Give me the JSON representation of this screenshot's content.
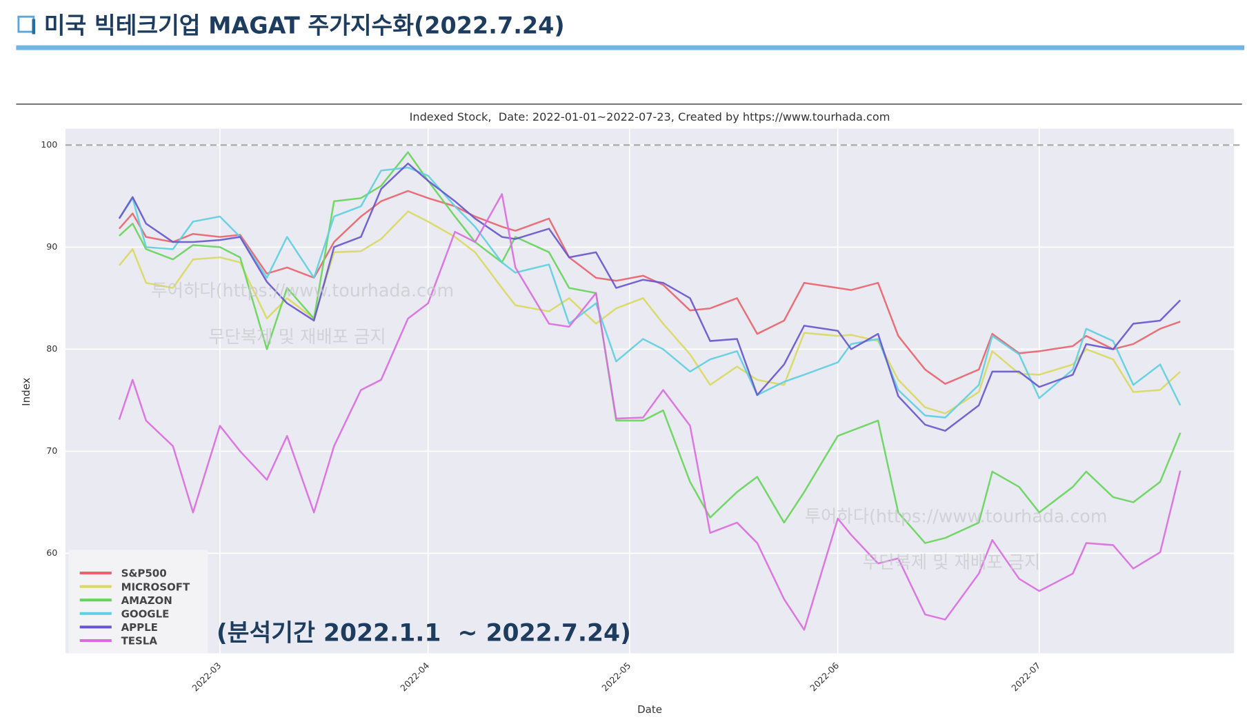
{
  "header": {
    "title": "미국 빅테크기업 MAGAT 주가지수화(2022.7.24)"
  },
  "chart_data": {
    "type": "line",
    "title": "Indexed Stock,  Date: 2022-01-01~2022-07-23, Created by https://www.tourhada.com",
    "x_label": "Date",
    "y_label": "Index",
    "annotation": "(분석기간 2022.1.1  ~ 2022.7.24)",
    "watermarks": [
      "투어하다(https://www.tourhada.com",
      "무단복제 및 재배포 금지",
      "투어하다(https://www.tourhada.com",
      "무단복제 및 재배포 금지"
    ],
    "x": [
      "2022-02-14",
      "2022-02-16",
      "2022-02-18",
      "2022-02-22",
      "2022-02-25",
      "2022-03-01",
      "2022-03-04",
      "2022-03-08",
      "2022-03-11",
      "2022-03-15",
      "2022-03-18",
      "2022-03-22",
      "2022-03-25",
      "2022-03-29",
      "2022-04-01",
      "2022-04-05",
      "2022-04-08",
      "2022-04-12",
      "2022-04-14",
      "2022-04-19",
      "2022-04-22",
      "2022-04-26",
      "2022-04-29",
      "2022-05-03",
      "2022-05-06",
      "2022-05-10",
      "2022-05-13",
      "2022-05-17",
      "2022-05-20",
      "2022-05-24",
      "2022-05-27",
      "2022-06-01",
      "2022-06-03",
      "2022-06-07",
      "2022-06-10",
      "2022-06-14",
      "2022-06-17",
      "2022-06-22",
      "2022-06-24",
      "2022-06-28",
      "2022-07-01",
      "2022-07-06",
      "2022-07-08",
      "2022-07-12",
      "2022-07-15",
      "2022-07-19",
      "2022-07-22"
    ],
    "series": [
      {
        "name": "S&P500",
        "color": "#e8636b",
        "values": [
          91.8,
          93.3,
          91,
          90.5,
          91.3,
          91,
          91.2,
          87.4,
          88,
          87,
          90.5,
          93,
          94.5,
          95.5,
          94.8,
          94,
          93,
          92,
          91.6,
          92.8,
          89,
          87,
          86.7,
          87.2,
          86.3,
          83.8,
          84,
          85,
          81.5,
          82.8,
          86.5,
          86,
          85.8,
          86.5,
          81.3,
          78,
          76.6,
          78,
          81.5,
          79.6,
          79.8,
          80.3,
          81.3,
          80,
          80.5,
          82,
          82.7
        ]
      },
      {
        "name": "MICROSOFT",
        "color": "#d9d95e",
        "values": [
          88.2,
          89.8,
          86.5,
          86,
          88.8,
          89,
          88.5,
          83,
          85,
          83,
          89.5,
          89.6,
          90.8,
          93.5,
          92.5,
          91,
          89.5,
          86,
          84.3,
          83.7,
          85,
          82.5,
          84,
          85,
          82.5,
          79.5,
          76.5,
          78.3,
          77,
          76.5,
          81.6,
          81.3,
          81.4,
          80.8,
          77,
          74.3,
          73.7,
          75.8,
          79.8,
          77.6,
          77.5,
          78.5,
          80,
          79,
          75.8,
          76,
          77.8
        ]
      },
      {
        "name": "AMAZON",
        "color": "#66d45a",
        "values": [
          91.1,
          92.3,
          89.8,
          88.8,
          90.2,
          90,
          89,
          80,
          86,
          83,
          94.5,
          94.8,
          96,
          99.3,
          96.5,
          93,
          90.5,
          88.5,
          91,
          89.5,
          86,
          85.5,
          73,
          73,
          74,
          67,
          63.5,
          66,
          67.5,
          63,
          66,
          71.5,
          72,
          73,
          64,
          61,
          61.5,
          63,
          68,
          66.5,
          64,
          66.5,
          68,
          65.5,
          65,
          67,
          71.8
        ]
      },
      {
        "name": "GOOGLE",
        "color": "#5ecfe0",
        "values": [
          92.8,
          94.8,
          90,
          89.8,
          92.5,
          93,
          91,
          87,
          91,
          87,
          93,
          94,
          97.5,
          97.8,
          97,
          94,
          92,
          88.5,
          87.5,
          88.3,
          82.5,
          84.5,
          78.8,
          81,
          80,
          77.8,
          79,
          79.8,
          75.5,
          76.8,
          77.5,
          78.7,
          80.5,
          81,
          76,
          73.5,
          73.3,
          76.5,
          81.3,
          79.5,
          75.2,
          78,
          82,
          80.8,
          76.5,
          78.5,
          74.5
        ]
      },
      {
        "name": "APPLE",
        "color": "#6655cc",
        "values": [
          92.8,
          94.9,
          92.3,
          90.5,
          90.5,
          90.7,
          91,
          86.6,
          84.5,
          82.8,
          90,
          91,
          95.7,
          98.2,
          96.5,
          94.5,
          92.8,
          91,
          90.8,
          91.8,
          89,
          89.5,
          86,
          86.8,
          86.5,
          85,
          80.8,
          81,
          75.5,
          78.5,
          82.3,
          81.8,
          80,
          81.5,
          75.4,
          72.6,
          72,
          74.5,
          77.8,
          77.8,
          76.3,
          77.5,
          80.5,
          80,
          82.5,
          82.8,
          84.8
        ]
      },
      {
        "name": "TESLA",
        "color": "#d96bdf",
        "values": [
          73.1,
          77,
          73,
          70.5,
          64,
          72.5,
          70,
          67.2,
          71.5,
          64,
          70.5,
          76,
          77,
          83,
          84.5,
          91.5,
          90.5,
          95.2,
          88,
          82.5,
          82.2,
          85.5,
          73.2,
          73.3,
          76,
          72.5,
          62,
          63,
          61,
          55.5,
          52.5,
          63.4,
          61.8,
          59,
          59.5,
          54,
          53.5,
          58,
          61.3,
          57.5,
          56.3,
          58,
          61,
          60.8,
          58.5,
          60.1,
          68.1
        ]
      }
    ],
    "xlim": [
      "2022-02-06",
      "2022-07-30"
    ],
    "xticks": [
      {
        "value": "2022-03-01",
        "label": "2022-03"
      },
      {
        "value": "2022-04-01",
        "label": "2022-04"
      },
      {
        "value": "2022-05-01",
        "label": "2022-05"
      },
      {
        "value": "2022-06-01",
        "label": "2022-06"
      },
      {
        "value": "2022-07-01",
        "label": "2022-07"
      }
    ],
    "ylim": [
      50.2,
      101.6
    ],
    "yticks": [
      60,
      70,
      80,
      90,
      100
    ],
    "reference_line": 100,
    "grid": true,
    "legend": "lower left"
  }
}
